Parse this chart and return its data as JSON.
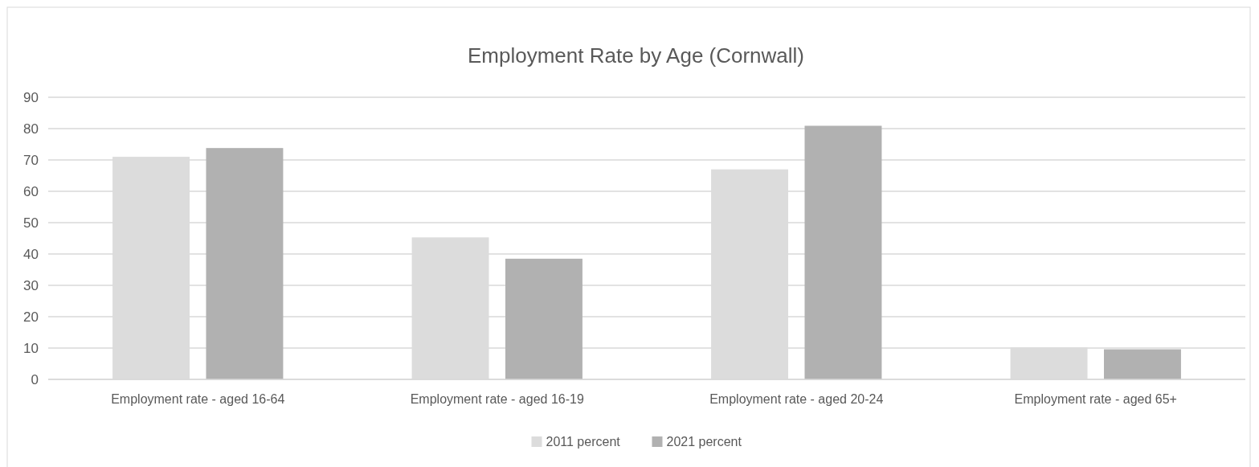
{
  "chart_data": {
    "type": "bar",
    "title": "Employment Rate by Age (Cornwall)",
    "categories": [
      "Employment rate - aged 16-64",
      "Employment rate - aged 16-19",
      "Employment rate - aged 20-24",
      "Employment rate - aged 65+"
    ],
    "series": [
      {
        "name": "2011 percent",
        "color": "#dcdcdc",
        "values": [
          71.0,
          45.3,
          67.0,
          10.2
        ]
      },
      {
        "name": "2021 percent",
        "color": "#b1b1b1",
        "values": [
          73.8,
          38.5,
          80.9,
          9.6
        ]
      }
    ],
    "ylim": [
      0,
      90
    ],
    "yticks": [
      0,
      10,
      20,
      30,
      40,
      50,
      60,
      70,
      80,
      90
    ],
    "grid": "y",
    "legend": "bottom"
  }
}
